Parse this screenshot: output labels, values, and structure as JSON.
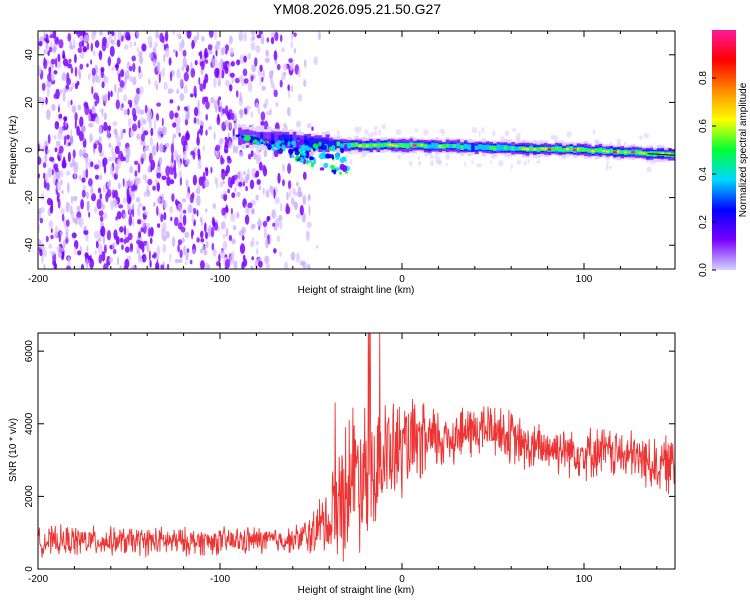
{
  "figure": {
    "title": "YM08.2026.095.21.50.G27"
  },
  "chart_data": [
    {
      "type": "heatmap",
      "xlabel": "Height of straight line (km)",
      "ylabel": "Frequency (Hz)",
      "xlim": [
        -200,
        150
      ],
      "ylim": [
        -50,
        50
      ],
      "xticks": [
        -200,
        -100,
        0,
        100
      ],
      "yticks": [
        -40,
        -20,
        0,
        20,
        40
      ],
      "colorbar": {
        "label": "Normalized spectral amplitude",
        "range": [
          0,
          1
        ],
        "ticks": [
          0.0,
          0.2,
          0.4,
          0.6,
          0.8
        ],
        "colormap": [
          "#d4d4ff",
          "#7a00ff",
          "#0000ff",
          "#00d8ff",
          "#00ff33",
          "#ffff00",
          "#ff8800",
          "#ff0000",
          "#ff1a9a"
        ]
      },
      "features": {
        "noise_region_x": [
          -200,
          -55
        ],
        "noise_dense_x": [
          -200,
          -85
        ],
        "tone_start_x": -90,
        "tone_freq_hz": [
          [
            -90,
            6
          ],
          [
            -50,
            3
          ],
          [
            -30,
            2
          ],
          [
            0,
            2
          ],
          [
            50,
            1
          ],
          [
            100,
            0
          ],
          [
            150,
            -2
          ]
        ],
        "tone_peak_amp": [
          [
            -90,
            0.3
          ],
          [
            -40,
            0.45
          ],
          [
            -25,
            0.9
          ],
          [
            0,
            0.95
          ],
          [
            40,
            0.6
          ],
          [
            80,
            0.95
          ],
          [
            130,
            0.9
          ],
          [
            150,
            0.95
          ]
        ]
      }
    },
    {
      "type": "line",
      "xlabel": "Height of straight line (km)",
      "ylabel": "SNR (10 * v/v)",
      "xlim": [
        -200,
        150
      ],
      "ylim": [
        0,
        6500
      ],
      "xticks": [
        -200,
        -100,
        0,
        100
      ],
      "yticks": [
        0,
        2000,
        4000,
        6000
      ],
      "color": "#ee3333",
      "series": [
        {
          "x": [
            -200,
            -180,
            -160,
            -140,
            -120,
            -100,
            -80,
            -60,
            -50,
            -40,
            -35,
            -30,
            -25,
            -20,
            -15,
            -10,
            -5,
            0,
            10,
            20,
            30,
            40,
            50,
            60,
            70,
            80,
            90,
            100,
            110,
            120,
            130,
            140,
            150
          ],
          "mean": [
            750,
            780,
            760,
            770,
            750,
            760,
            790,
            800,
            950,
            1400,
            1900,
            2400,
            2700,
            2900,
            3000,
            3100,
            3200,
            3300,
            3450,
            3550,
            3700,
            3800,
            3900,
            3600,
            3300,
            3350,
            3300,
            3200,
            3250,
            3150,
            3050,
            2850,
            2900
          ],
          "spread": [
            450,
            500,
            450,
            480,
            450,
            450,
            450,
            400,
            700,
            1200,
            1800,
            2400,
            2500,
            2400,
            2000,
            1900,
            1700,
            1600,
            1300,
            1100,
            900,
            900,
            900,
            900,
            800,
            800,
            800,
            850,
            800,
            800,
            850,
            900,
            950
          ]
        }
      ]
    }
  ]
}
